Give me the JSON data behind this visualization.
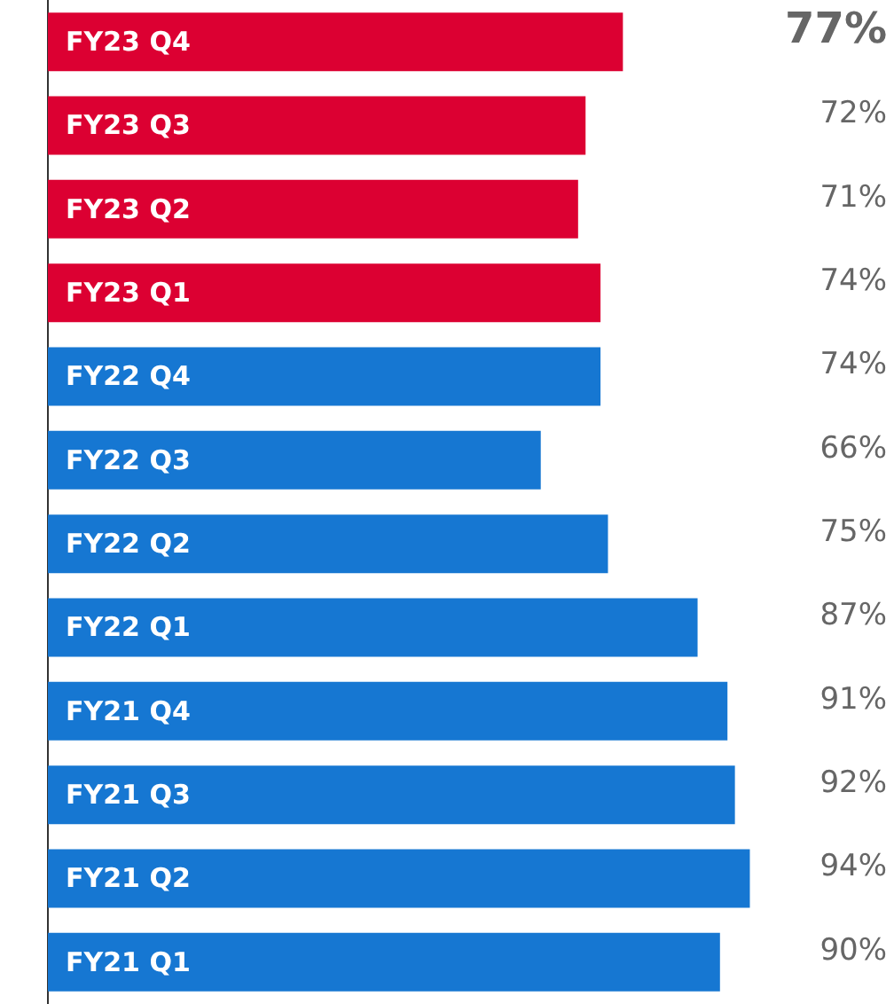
{
  "chart_data": {
    "type": "bar",
    "orientation": "horizontal",
    "categories": [
      "FY23 Q4",
      "FY23 Q3",
      "FY23 Q2",
      "FY23 Q1",
      "FY22 Q4",
      "FY22 Q3",
      "FY22 Q2",
      "FY22 Q1",
      "FY21 Q4",
      "FY21 Q3",
      "FY21 Q2",
      "FY21 Q1"
    ],
    "values": [
      77,
      72,
      71,
      74,
      74,
      66,
      75,
      87,
      91,
      92,
      94,
      90
    ],
    "colors": [
      "#dc0032",
      "#dc0032",
      "#dc0032",
      "#dc0032",
      "#1677d2",
      "#1677d2",
      "#1677d2",
      "#1677d2",
      "#1677d2",
      "#1677d2",
      "#1677d2",
      "#1677d2"
    ],
    "value_labels": [
      "77%",
      "72%",
      "71%",
      "74%",
      "74%",
      "66%",
      "75%",
      "87%",
      "91%",
      "92%",
      "94%",
      "90%"
    ]
  }
}
